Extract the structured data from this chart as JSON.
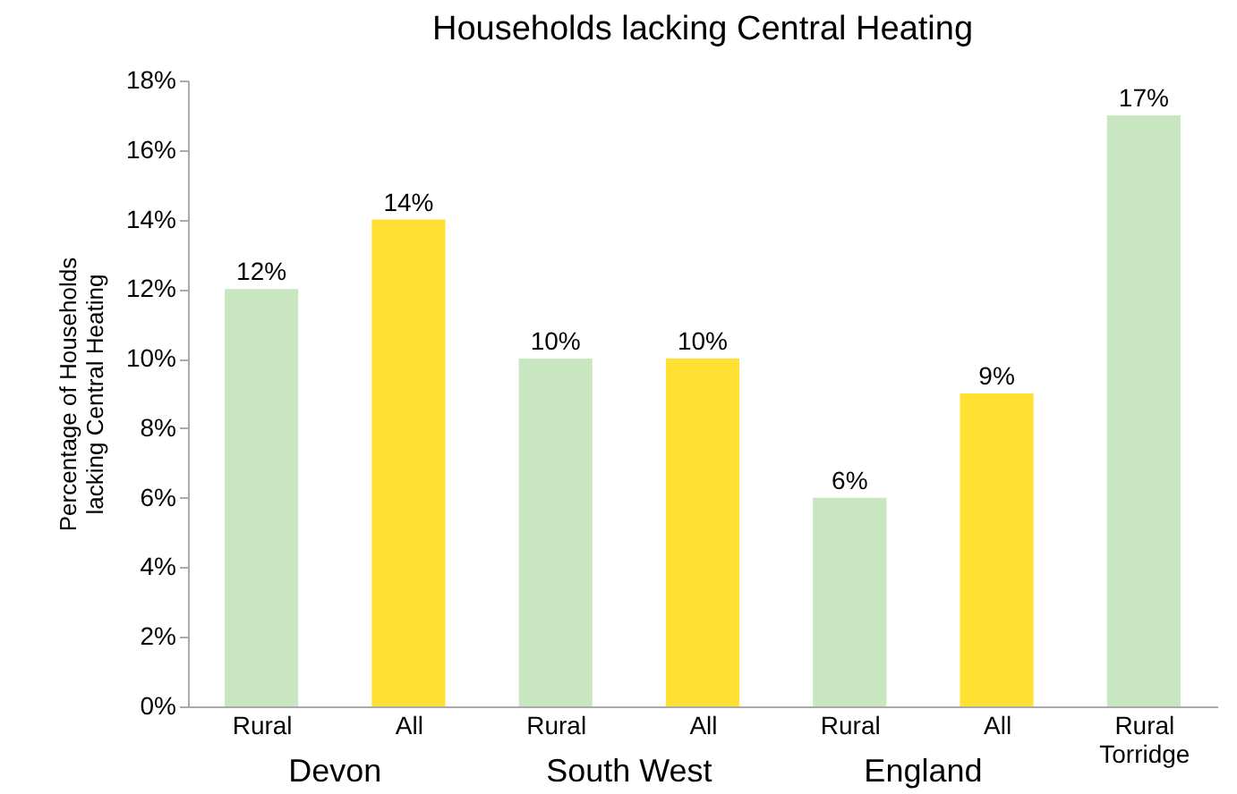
{
  "chart_data": {
    "type": "bar",
    "title": "Households lacking Central Heating",
    "ylabel": "Percentage of Households lacking Central Heating",
    "categories": [
      "Rural",
      "All",
      "Rural",
      "All",
      "Rural",
      "All",
      "Rural Torridge"
    ],
    "values": [
      12,
      14,
      10,
      10,
      6,
      9,
      17
    ],
    "colors": [
      "#c8e6c0",
      "#ffe033",
      "#c8e6c0",
      "#ffe033",
      "#c8e6c0",
      "#ffe033",
      "#c8e6c0"
    ],
    "value_labels": [
      "12%",
      "14%",
      "10%",
      "10%",
      "6%",
      "9%",
      "17%"
    ],
    "ylim": [
      0,
      18
    ],
    "yticks": [
      {
        "value": 0,
        "label": "0%"
      },
      {
        "value": 2,
        "label": "2%"
      },
      {
        "value": 4,
        "label": "4%"
      },
      {
        "value": 6,
        "label": "6%"
      },
      {
        "value": 8,
        "label": "8%"
      },
      {
        "value": 10,
        "label": "10%"
      },
      {
        "value": 12,
        "label": "12%"
      },
      {
        "value": 14,
        "label": "14%"
      },
      {
        "value": 16,
        "label": "16%"
      },
      {
        "value": 18,
        "label": "18%"
      }
    ],
    "annotations": [
      "Devon",
      "South West",
      "England"
    ],
    "grid": false
  }
}
